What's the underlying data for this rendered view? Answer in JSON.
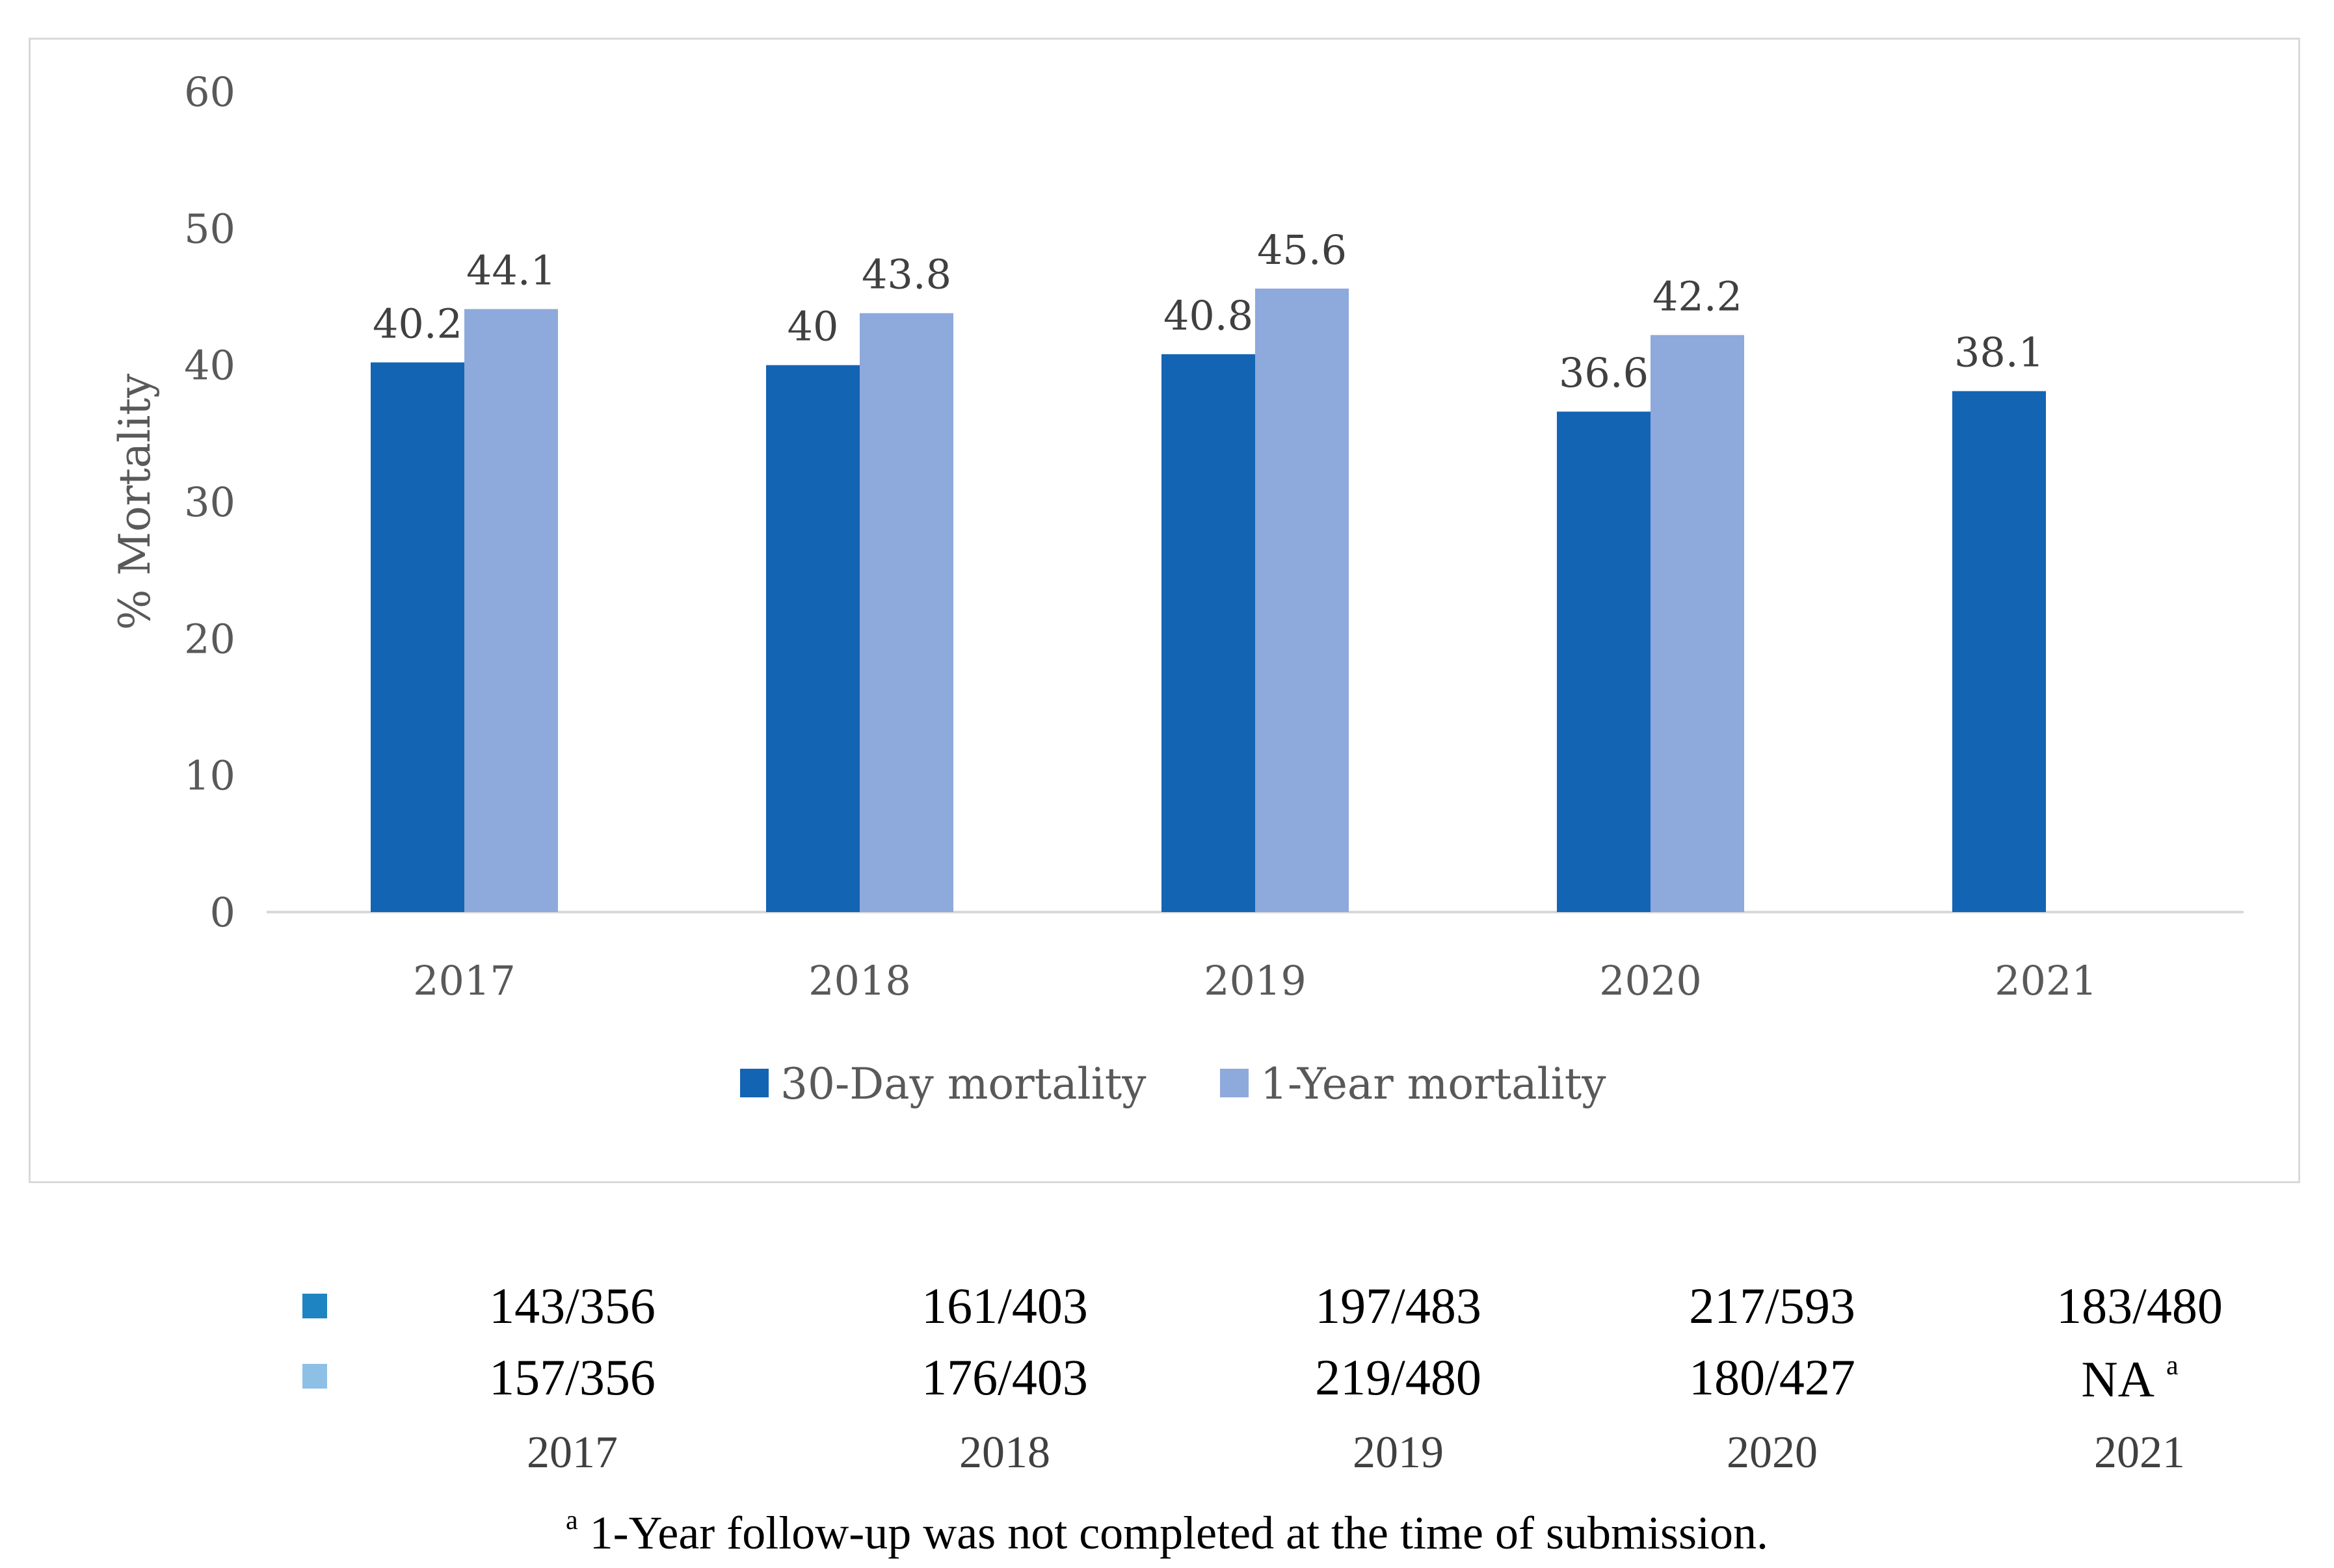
{
  "chart_data": {
    "type": "bar",
    "title": "",
    "xlabel": "",
    "ylabel": "% Mortality",
    "ylim": [
      0,
      60
    ],
    "yticks": [
      "0",
      "10",
      "20",
      "30",
      "40",
      "50",
      "60"
    ],
    "categories": [
      "2017",
      "2018",
      "2019",
      "2020",
      "2021"
    ],
    "series": [
      {
        "name": "30-Day mortality",
        "color": "#1464b4",
        "values": [
          40.2,
          40,
          40.8,
          36.6,
          38.1
        ],
        "labels": [
          "40.2",
          "40",
          "40.8",
          "36.6",
          "38.1"
        ]
      },
      {
        "name": "1-Year mortality",
        "color": "#8ea9db",
        "values": [
          44.1,
          43.8,
          45.6,
          42.2,
          null
        ],
        "labels": [
          "44.1",
          "43.8",
          "45.6",
          "42.2",
          ""
        ]
      }
    ],
    "legend": "bottom"
  },
  "counts_table": {
    "rows": [
      {
        "marker_color": "#1f85c2",
        "cells": [
          "143/356",
          "161/403",
          "197/483",
          "217/593",
          "183/480"
        ]
      },
      {
        "marker_color": "#8ec0e6",
        "cells": [
          "157/356",
          "176/403",
          "219/480",
          "180/427",
          "NA"
        ]
      }
    ],
    "na_footnote_mark": "a",
    "years": [
      "2017",
      "2018",
      "2019",
      "2020",
      "2021"
    ]
  },
  "footnote": {
    "mark": "a",
    "text": "1-Year follow-up was not completed at the time of submission."
  }
}
